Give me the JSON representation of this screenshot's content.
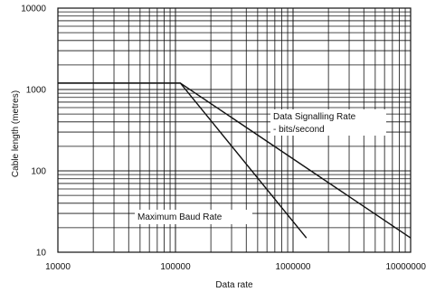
{
  "chart_data": {
    "type": "line",
    "x_scale": "log",
    "y_scale": "log",
    "xlim": [
      10000,
      10000000
    ],
    "ylim": [
      10,
      10000
    ],
    "xlabel": "Data rate",
    "ylabel": "Cable length (metres)",
    "x_ticks": [
      {
        "value": 10000,
        "label": "10000"
      },
      {
        "value": 100000,
        "label": "100000"
      },
      {
        "value": 1000000,
        "label": "1000000"
      },
      {
        "value": 10000000,
        "label": "10000000"
      }
    ],
    "y_ticks": [
      {
        "value": 10,
        "label": "10"
      },
      {
        "value": 100,
        "label": "100"
      },
      {
        "value": 1000,
        "label": "1000"
      },
      {
        "value": 10000,
        "label": "10000"
      }
    ],
    "grid": true,
    "series": [
      {
        "name": "Data Signalling Rate - bits/second",
        "points": [
          [
            10000,
            1200
          ],
          [
            110000,
            1200
          ],
          [
            10000000,
            15
          ]
        ]
      },
      {
        "name": "Maximum Baud Rate",
        "points": [
          [
            10000,
            1200
          ],
          [
            110000,
            1200
          ],
          [
            1300000,
            15
          ]
        ]
      }
    ],
    "annotations": [
      {
        "lines": [
          "Data Signalling Rate",
          "- bits/second"
        ]
      },
      {
        "lines": [
          "Maximum Baud Rate"
        ]
      }
    ]
  }
}
